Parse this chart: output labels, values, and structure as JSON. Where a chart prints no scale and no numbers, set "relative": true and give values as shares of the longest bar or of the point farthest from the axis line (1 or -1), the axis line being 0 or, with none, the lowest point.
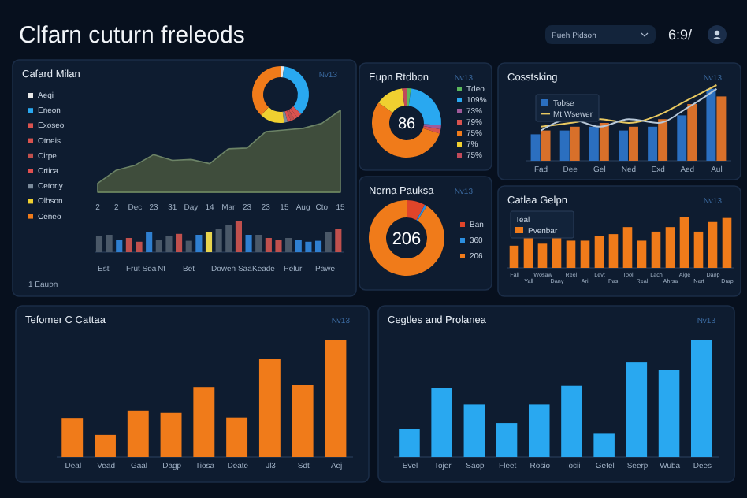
{
  "chart_data": [
    {
      "type": "other",
      "title": "Clfarn cuturn freleods",
      "annotations": [
        "Pueh Pidson",
        "6:9/"
      ]
    },
    {
      "type": "area",
      "title": "Cafard Milan",
      "subtitle": "Nv13",
      "relative": true,
      "categories": [
        "2",
        "2",
        "Dec",
        "23",
        "31",
        "Day",
        "14",
        "Mar",
        "23",
        "23",
        "15",
        "Aug",
        "Cto",
        "15"
      ],
      "series": [
        {
          "color": "#3f4d3c",
          "values": [
            0.11,
            0.27,
            0.33,
            0.46,
            0.39,
            0.4,
            0.35,
            0.53,
            0.54,
            0.74,
            0.76,
            0.78,
            0.84,
            1
          ]
        }
      ]
    },
    {
      "type": "donut",
      "legend": "left",
      "categories": [
        "Aeqi",
        "Eneon",
        "Exoseo",
        "Otneis",
        "Cirpe",
        "Crtica",
        "Cetoriy",
        "Olbson",
        "Ceneo"
      ],
      "values": [
        2,
        35,
        3,
        2,
        2,
        2,
        2,
        14,
        38
      ],
      "colors": [
        "#e8e8e8",
        "#29a8f0",
        "#d9534f",
        "#d9534f",
        "#c0504d",
        "#e05050",
        "#7a8a9a",
        "#f0d030",
        "#f07b1a"
      ]
    },
    {
      "type": "bar",
      "relative": true,
      "categories": [
        null,
        null,
        null,
        null,
        null,
        null,
        null,
        null,
        null,
        null,
        null,
        null,
        null,
        null,
        null,
        null,
        null,
        null,
        null,
        null,
        null,
        null,
        null,
        null,
        null
      ],
      "values": [
        0.51,
        0.55,
        0.4,
        0.45,
        0.33,
        0.64,
        0.4,
        0.51,
        0.58,
        0.36,
        0.55,
        0.64,
        0.73,
        0.87,
        1,
        0.55,
        0.55,
        0.45,
        0.4,
        0.45,
        0.4,
        0.33,
        0.36,
        0.64,
        0.73
      ],
      "colors": [
        "#4a5868",
        "#4a5868",
        "#2f7fd0",
        "#c0504d",
        "#c0504d",
        "#2f7fd0",
        "#4a5868",
        "#4a5868",
        "#c0504d",
        "#4a5868",
        "#2f7fd0",
        "#e8d44d",
        "#4a5868",
        "#4a5868",
        "#c0504d",
        "#2f7fd0",
        "#4a5868",
        "#c0504d",
        "#c0504d",
        "#4a5868",
        "#2f7fd0",
        "#2f7fd0",
        "#2f7fd0",
        "#4a5868",
        "#c0504d"
      ],
      "annotations": [
        "Est",
        "Frut Sea",
        "Nt",
        "Bet",
        "Dowen Saa",
        "Keade",
        "Pelur",
        "Pawe",
        "1 Eaupn"
      ]
    },
    {
      "type": "donut",
      "title": "Eupn Rtdbon",
      "subtitle": "Nv13",
      "legend": "right",
      "categories": [
        "Tdeo",
        "109%",
        "73%",
        "79%",
        "75%",
        "7%",
        "75%"
      ],
      "values": [
        2,
        24,
        2,
        2,
        55,
        13,
        2
      ],
      "colors": [
        "#5cb85c",
        "#29a8f0",
        "#a05a9a",
        "#d9534f",
        "#f07b1a",
        "#f0d030",
        "#c04a5a"
      ],
      "annotations": [
        "86"
      ]
    },
    {
      "type": "bar",
      "title": "Cosstsking",
      "subtitle": "Nv13",
      "relative": true,
      "legend": "top left",
      "categories": [
        "Fad",
        "Dee",
        "Gel",
        "Ned",
        "Exd",
        "Aed",
        "Aul"
      ],
      "series": [
        {
          "name": "Tobse",
          "color": "#2b6fc0",
          "values": [
            0.35,
            0.4,
            0.45,
            0.4,
            0.45,
            0.6,
            0.95
          ]
        },
        {
          "color": "#d8702a",
          "values": [
            0.4,
            0.45,
            0.5,
            0.45,
            0.55,
            0.75,
            0.85
          ]
        },
        {
          "name": "Mt Wsewer",
          "type": "line",
          "color": "#e8c860",
          "values": [
            0.45,
            0.5,
            0.55,
            0.5,
            0.6,
            0.8,
            1
          ]
        },
        {
          "type": "line",
          "color": "#b8c8d8",
          "values": [
            0.4,
            0.55,
            0.45,
            0.55,
            0.5,
            0.7,
            0.95
          ]
        }
      ]
    },
    {
      "type": "donut",
      "title": "Nerna Pauksa",
      "subtitle": "Nv13",
      "legend": "right",
      "categories": [
        "Ban",
        "360",
        "206"
      ],
      "values": [
        8,
        1,
        91
      ],
      "colors": [
        "#e0452a",
        "#2b8fe0",
        "#f07b1a"
      ],
      "annotations": [
        "206"
      ]
    },
    {
      "type": "bar",
      "title": "Catlaa Gelpn",
      "subtitle": "Nv13",
      "relative": true,
      "legend": "top left",
      "legend_title": "Teal",
      "categories": [
        "Fall",
        "Yall",
        "Wosaw",
        "Dany",
        "Reel",
        "Aril",
        "Levt",
        "Pasi",
        "Tool",
        "Real",
        "Lach",
        "Ahrsa",
        "Aige",
        "Nert",
        "Daop",
        "Drap"
      ],
      "series": [
        {
          "name": "Pvenbar",
          "color": "#f07b1a",
          "values": [
            0.44,
            0.61,
            0.48,
            0.64,
            0.54,
            0.54,
            0.64,
            0.67,
            0.81,
            0.54,
            0.72,
            0.81,
            1,
            0.72,
            0.91,
            0.99
          ]
        }
      ]
    },
    {
      "type": "bar",
      "title": "Tefomer C Cattaa",
      "subtitle": "Nv13",
      "relative": true,
      "categories": [
        "Deal",
        "Vead",
        "Gaal",
        "Dagp",
        "Tiosa",
        "Deate",
        "Jl3",
        "Sdt",
        "Aej"
      ],
      "color": "#f07b1a",
      "values": [
        0.33,
        0.19,
        0.4,
        0.38,
        0.6,
        0.34,
        0.84,
        0.62,
        1
      ]
    },
    {
      "type": "bar",
      "title": "Cegtles and Prolanea",
      "subtitle": "Nv13",
      "relative": true,
      "categories": [
        "Evel",
        "Tojer",
        "Saop",
        "Fleet",
        "Rosio",
        "Tocii",
        "Getel",
        "Seerp",
        "Wuba",
        "Dees"
      ],
      "color": "#29a8f0",
      "values": [
        0.24,
        0.59,
        0.45,
        0.29,
        0.45,
        0.61,
        0.2,
        0.81,
        0.75,
        1
      ]
    }
  ]
}
